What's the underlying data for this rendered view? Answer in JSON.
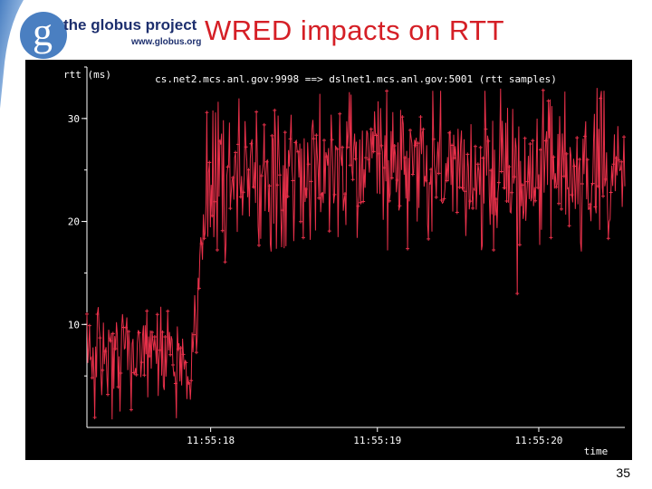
{
  "slide": {
    "title": "WRED impacts on RTT",
    "page_number": "35"
  },
  "logo": {
    "letter": "g",
    "name": "the globus project",
    "url": "www.globus.org"
  },
  "colors": {
    "series": "#e8304a",
    "title": "#d51f26",
    "logo_blue": "#4a7fc1",
    "panel": "#000000"
  },
  "chart_data": {
    "type": "line",
    "title": "cs.net2.mcs.anl.gov:9998 ==> dslnet1.mcs.anl.gov:5001 (rtt samples)",
    "ylabel": "rtt (ms)",
    "xlabel": "time",
    "ylim": [
      0,
      35
    ],
    "y_ticks": [
      10,
      20,
      30
    ],
    "y_tick_labels": [
      "10",
      "20",
      "30"
    ],
    "x_ticks": [
      {
        "label": "11:55:18",
        "position": 0.23
      },
      {
        "label": "11:55:19",
        "position": 0.54
      },
      {
        "label": "11:55:20",
        "position": 0.84
      }
    ],
    "grid": false,
    "series": [
      {
        "name": "rtt samples",
        "segments": [
          {
            "x_start": 0.0,
            "x_end": 0.19,
            "low": 0.5,
            "high": 12,
            "typical_low": 4,
            "typical_high": 10
          },
          {
            "x_start": 0.19,
            "x_end": 0.22,
            "low": 3,
            "high": 21,
            "ramp": true
          },
          {
            "x_start": 0.22,
            "x_end": 0.26,
            "low": 16,
            "high": 32
          },
          {
            "x_start": 0.26,
            "x_end": 1.0,
            "low": 17,
            "high": 33,
            "typical_low": 21,
            "typical_high": 29
          }
        ],
        "outliers": [
          {
            "x": 0.8,
            "y": 13
          }
        ]
      }
    ]
  }
}
